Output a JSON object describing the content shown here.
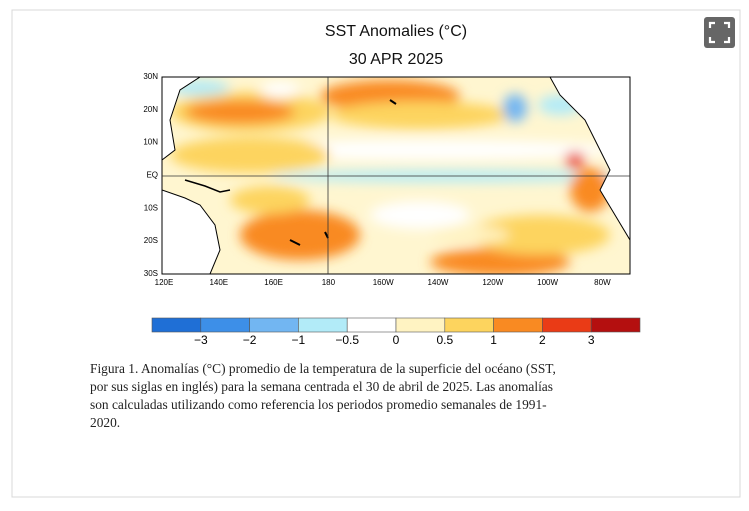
{
  "figure": {
    "title": "SST Anomalies (°C)",
    "date": "30 APR 2025",
    "lat_labels": [
      "30N",
      "20N",
      "10N",
      "EQ",
      "10S",
      "20S",
      "30S"
    ],
    "lon_labels": [
      "120E",
      "140E",
      "160E",
      "180",
      "160W",
      "140W",
      "120W",
      "100W",
      "80W"
    ],
    "colorbar": {
      "labels": [
        "−3",
        "−2",
        "−1",
        "−0.5",
        "0",
        "0.5",
        "1",
        "2",
        "3"
      ],
      "colors": [
        "#1f6fd6",
        "#3d8fe8",
        "#72b6f2",
        "#b2ebf8",
        "#ffffff",
        "#fff3c2",
        "#fdd45e",
        "#f98a22",
        "#ea3b16",
        "#b40f0f"
      ]
    },
    "caption": [
      "Figura 1. Anomalías (°C) promedio de la temperatura de la superficie del océano (SST,",
      "por sus siglas en inglés) para la semana centrada el 30 de abril de 2025. Las anomalías",
      "son calculadas utilizando como referencia los periodos promedio semanales de 1991-",
      "2020."
    ]
  }
}
